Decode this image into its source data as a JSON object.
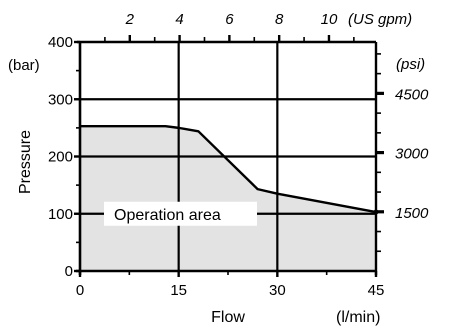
{
  "chart_data": {
    "type": "area",
    "x": {
      "label": "Flow",
      "unit": "(l/min)",
      "ticks": [
        0,
        15,
        30,
        45
      ],
      "tick_labels": [
        "0",
        "15",
        "30",
        "45"
      ],
      "range": [
        0,
        45
      ]
    },
    "x_secondary": {
      "unit": "(US gpm)",
      "ticks": [
        2,
        4,
        6,
        8,
        10
      ],
      "tick_labels": [
        "2",
        "4",
        "6",
        "8",
        "10"
      ]
    },
    "y": {
      "label": "Pressure",
      "unit": "(bar)",
      "ticks": [
        0,
        100,
        200,
        300,
        400
      ],
      "tick_labels": [
        "0",
        "100",
        "200",
        "300",
        "400"
      ],
      "range": [
        0,
        400
      ]
    },
    "y_secondary": {
      "unit": "(psi)",
      "ticks": [
        1500,
        3000,
        4500
      ],
      "tick_labels": [
        "1500",
        "3000",
        "4500"
      ]
    },
    "series": [
      {
        "x": [
          0,
          13,
          15,
          18,
          27,
          30,
          45
        ],
        "y": [
          253,
          253,
          250,
          244,
          143,
          135,
          103
        ]
      }
    ],
    "annotation": "Operation area",
    "fill_color": "#e3e3e3",
    "line_color": "#000000",
    "grid": "major"
  }
}
